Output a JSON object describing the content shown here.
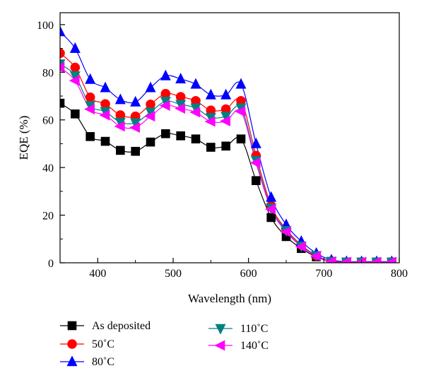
{
  "chart_data": {
    "type": "line",
    "title": "",
    "xlabel": "Wavelength (nm)",
    "ylabel": "EQE (%)",
    "xlim": [
      350,
      800
    ],
    "ylim": [
      0,
      105
    ],
    "xticks": [
      "400",
      "500",
      "600",
      "700",
      "800"
    ],
    "yticks": [
      "0",
      "20",
      "40",
      "60",
      "80",
      "100"
    ],
    "grid": false,
    "legend_position": "bottom",
    "x": [
      350,
      370,
      390,
      410,
      430,
      450,
      470,
      490,
      510,
      530,
      550,
      570,
      590,
      610,
      630,
      650,
      670,
      690,
      710,
      730,
      750,
      770,
      790
    ],
    "series": [
      {
        "name": "As deposited",
        "marker": "square",
        "color": "#000000",
        "values": [
          67,
          62.5,
          53,
          51,
          47.2,
          46.8,
          50.7,
          54.2,
          53.3,
          52,
          48.5,
          49,
          52,
          34.5,
          19,
          11,
          6,
          2.5,
          0.5,
          0.3,
          0.3,
          0.3,
          0.3
        ]
      },
      {
        "name": "50˚C",
        "marker": "circle",
        "color": "#ff0000",
        "values": [
          88,
          82,
          69.5,
          66.7,
          62,
          61.5,
          66.5,
          71,
          69.7,
          68,
          64,
          64.5,
          68,
          45,
          24,
          14,
          7.5,
          3,
          0.7,
          0.3,
          0.3,
          0.3,
          0.3
        ]
      },
      {
        "name": "80˚C",
        "marker": "triangle-up",
        "color": "#0000ff",
        "values": [
          97,
          90,
          77,
          73.5,
          68.5,
          67.5,
          73.5,
          78.5,
          77.2,
          75,
          70.5,
          70.5,
          75,
          50,
          27.5,
          16,
          9,
          4,
          1.2,
          0.5,
          0.5,
          0.5,
          0.5
        ]
      },
      {
        "name": "110˚C",
        "marker": "triangle-down",
        "color": "#008080",
        "values": [
          83.5,
          78.5,
          66,
          63.5,
          59,
          58.8,
          63.3,
          67.8,
          66.5,
          65,
          61,
          61.5,
          65,
          43,
          23,
          13.5,
          7,
          3,
          0.6,
          0.3,
          0.3,
          0.3,
          0.3
        ]
      },
      {
        "name": "140˚C",
        "marker": "triangle-left",
        "color": "#ff00ff",
        "values": [
          82,
          76.5,
          64.5,
          62,
          57.3,
          56.8,
          61.5,
          66,
          64.8,
          63.2,
          59.3,
          59.5,
          63.5,
          42,
          22.5,
          13,
          6.8,
          2.8,
          0.5,
          0.3,
          0.3,
          0.3,
          0.3
        ]
      }
    ]
  }
}
